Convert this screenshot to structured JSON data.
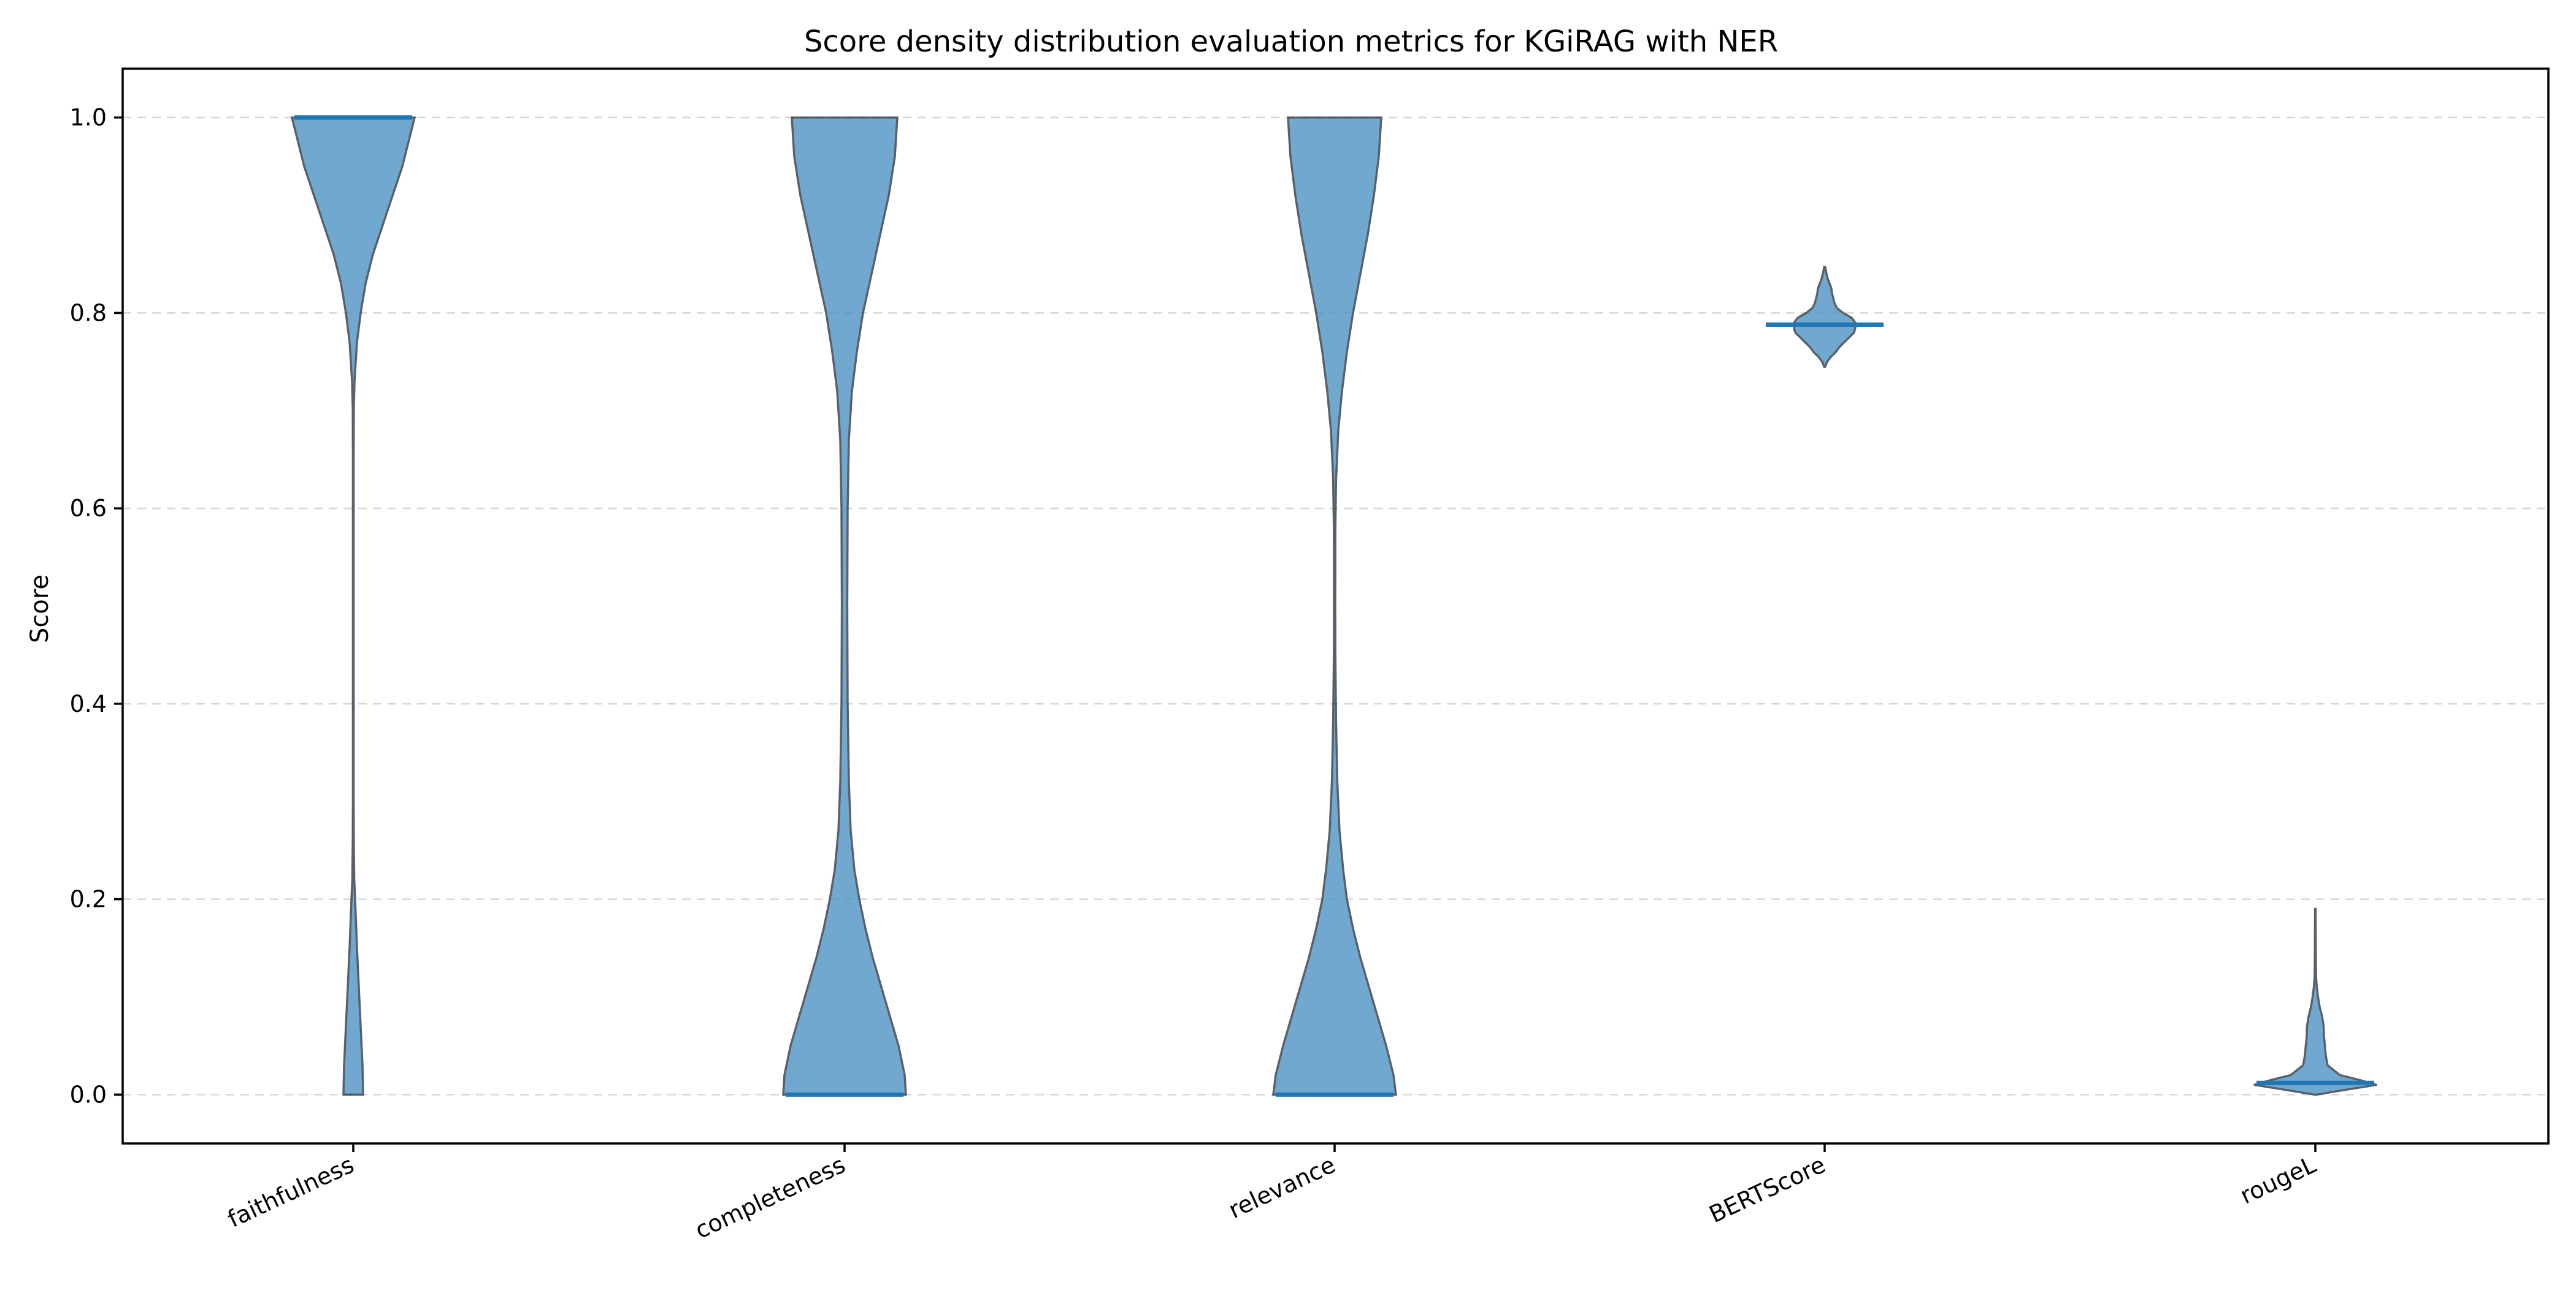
{
  "chart_data": {
    "type": "violin",
    "title": "Score density distribution evaluation metrics for KGiRAG with NER",
    "xlabel": "",
    "ylabel": "Score",
    "ylim": [
      -0.05,
      1.05
    ],
    "yticks": [
      0.0,
      0.2,
      0.4,
      0.6,
      0.8,
      1.0
    ],
    "ytick_labels": [
      "0.0",
      "0.2",
      "0.4",
      "0.6",
      "0.8",
      "1.0"
    ],
    "grid": "horizontal-dashed",
    "categories": [
      "faithfulness",
      "completeness",
      "relevance",
      "BERTScore",
      "rougeL"
    ],
    "colors": {
      "fill": "#4a90c4",
      "edge": "#2a3440",
      "median": "#1f77b4",
      "grid": "#cccccc"
    },
    "violins": [
      {
        "name": "faithfulness",
        "median": 1.0,
        "min": 0.0,
        "max": 1.0,
        "profile": [
          [
            0.0,
            0.08
          ],
          [
            0.03,
            0.075
          ],
          [
            0.07,
            0.06
          ],
          [
            0.11,
            0.045
          ],
          [
            0.15,
            0.03
          ],
          [
            0.19,
            0.018
          ],
          [
            0.22,
            0.008
          ],
          [
            0.26,
            0.004
          ],
          [
            0.3,
            0.003
          ],
          [
            0.35,
            0.003
          ],
          [
            0.5,
            0.003
          ],
          [
            0.65,
            0.003
          ],
          [
            0.7,
            0.004
          ],
          [
            0.73,
            0.01
          ],
          [
            0.77,
            0.03
          ],
          [
            0.8,
            0.06
          ],
          [
            0.83,
            0.1
          ],
          [
            0.86,
            0.16
          ],
          [
            0.89,
            0.24
          ],
          [
            0.92,
            0.32
          ],
          [
            0.95,
            0.4
          ],
          [
            0.98,
            0.46
          ],
          [
            1.0,
            0.5
          ]
        ]
      },
      {
        "name": "completeness",
        "median": 0.0,
        "min": 0.0,
        "max": 1.0,
        "profile": [
          [
            0.0,
            0.5
          ],
          [
            0.02,
            0.49
          ],
          [
            0.05,
            0.44
          ],
          [
            0.08,
            0.37
          ],
          [
            0.11,
            0.3
          ],
          [
            0.14,
            0.23
          ],
          [
            0.17,
            0.17
          ],
          [
            0.2,
            0.12
          ],
          [
            0.23,
            0.08
          ],
          [
            0.27,
            0.05
          ],
          [
            0.32,
            0.035
          ],
          [
            0.4,
            0.025
          ],
          [
            0.5,
            0.022
          ],
          [
            0.6,
            0.025
          ],
          [
            0.67,
            0.035
          ],
          [
            0.72,
            0.06
          ],
          [
            0.76,
            0.1
          ],
          [
            0.8,
            0.15
          ],
          [
            0.84,
            0.22
          ],
          [
            0.88,
            0.29
          ],
          [
            0.92,
            0.36
          ],
          [
            0.96,
            0.41
          ],
          [
            1.0,
            0.43
          ]
        ]
      },
      {
        "name": "relevance",
        "median": 0.0,
        "min": 0.0,
        "max": 1.0,
        "profile": [
          [
            0.0,
            0.5
          ],
          [
            0.02,
            0.48
          ],
          [
            0.05,
            0.42
          ],
          [
            0.08,
            0.35
          ],
          [
            0.11,
            0.28
          ],
          [
            0.14,
            0.21
          ],
          [
            0.17,
            0.15
          ],
          [
            0.2,
            0.1
          ],
          [
            0.23,
            0.07
          ],
          [
            0.27,
            0.04
          ],
          [
            0.32,
            0.022
          ],
          [
            0.38,
            0.012
          ],
          [
            0.45,
            0.006
          ],
          [
            0.5,
            0.005
          ],
          [
            0.58,
            0.006
          ],
          [
            0.63,
            0.012
          ],
          [
            0.68,
            0.03
          ],
          [
            0.72,
            0.06
          ],
          [
            0.76,
            0.1
          ],
          [
            0.8,
            0.15
          ],
          [
            0.84,
            0.21
          ],
          [
            0.88,
            0.27
          ],
          [
            0.92,
            0.32
          ],
          [
            0.96,
            0.36
          ],
          [
            1.0,
            0.38
          ]
        ]
      },
      {
        "name": "BERTScore",
        "median": 0.788,
        "min": 0.745,
        "max": 0.847,
        "profile": [
          [
            0.745,
            0.004
          ],
          [
            0.75,
            0.02
          ],
          [
            0.755,
            0.05
          ],
          [
            0.76,
            0.09
          ],
          [
            0.765,
            0.12
          ],
          [
            0.77,
            0.16
          ],
          [
            0.775,
            0.2
          ],
          [
            0.78,
            0.24
          ],
          [
            0.785,
            0.25
          ],
          [
            0.79,
            0.25
          ],
          [
            0.795,
            0.22
          ],
          [
            0.8,
            0.15
          ],
          [
            0.805,
            0.1
          ],
          [
            0.81,
            0.08
          ],
          [
            0.815,
            0.07
          ],
          [
            0.82,
            0.06
          ],
          [
            0.825,
            0.055
          ],
          [
            0.83,
            0.04
          ],
          [
            0.835,
            0.025
          ],
          [
            0.84,
            0.015
          ],
          [
            0.847,
            0.004
          ]
        ]
      },
      {
        "name": "rougeL",
        "median": 0.012,
        "min": 0.0,
        "max": 0.19,
        "profile": [
          [
            0.0,
            0.01
          ],
          [
            0.005,
            0.25
          ],
          [
            0.01,
            0.5
          ],
          [
            0.015,
            0.36
          ],
          [
            0.02,
            0.2
          ],
          [
            0.03,
            0.1
          ],
          [
            0.04,
            0.085
          ],
          [
            0.05,
            0.078
          ],
          [
            0.06,
            0.07
          ],
          [
            0.07,
            0.068
          ],
          [
            0.08,
            0.055
          ],
          [
            0.09,
            0.035
          ],
          [
            0.1,
            0.022
          ],
          [
            0.11,
            0.012
          ],
          [
            0.12,
            0.006
          ],
          [
            0.14,
            0.004
          ],
          [
            0.16,
            0.003
          ],
          [
            0.19,
            0.002
          ]
        ]
      }
    ]
  }
}
